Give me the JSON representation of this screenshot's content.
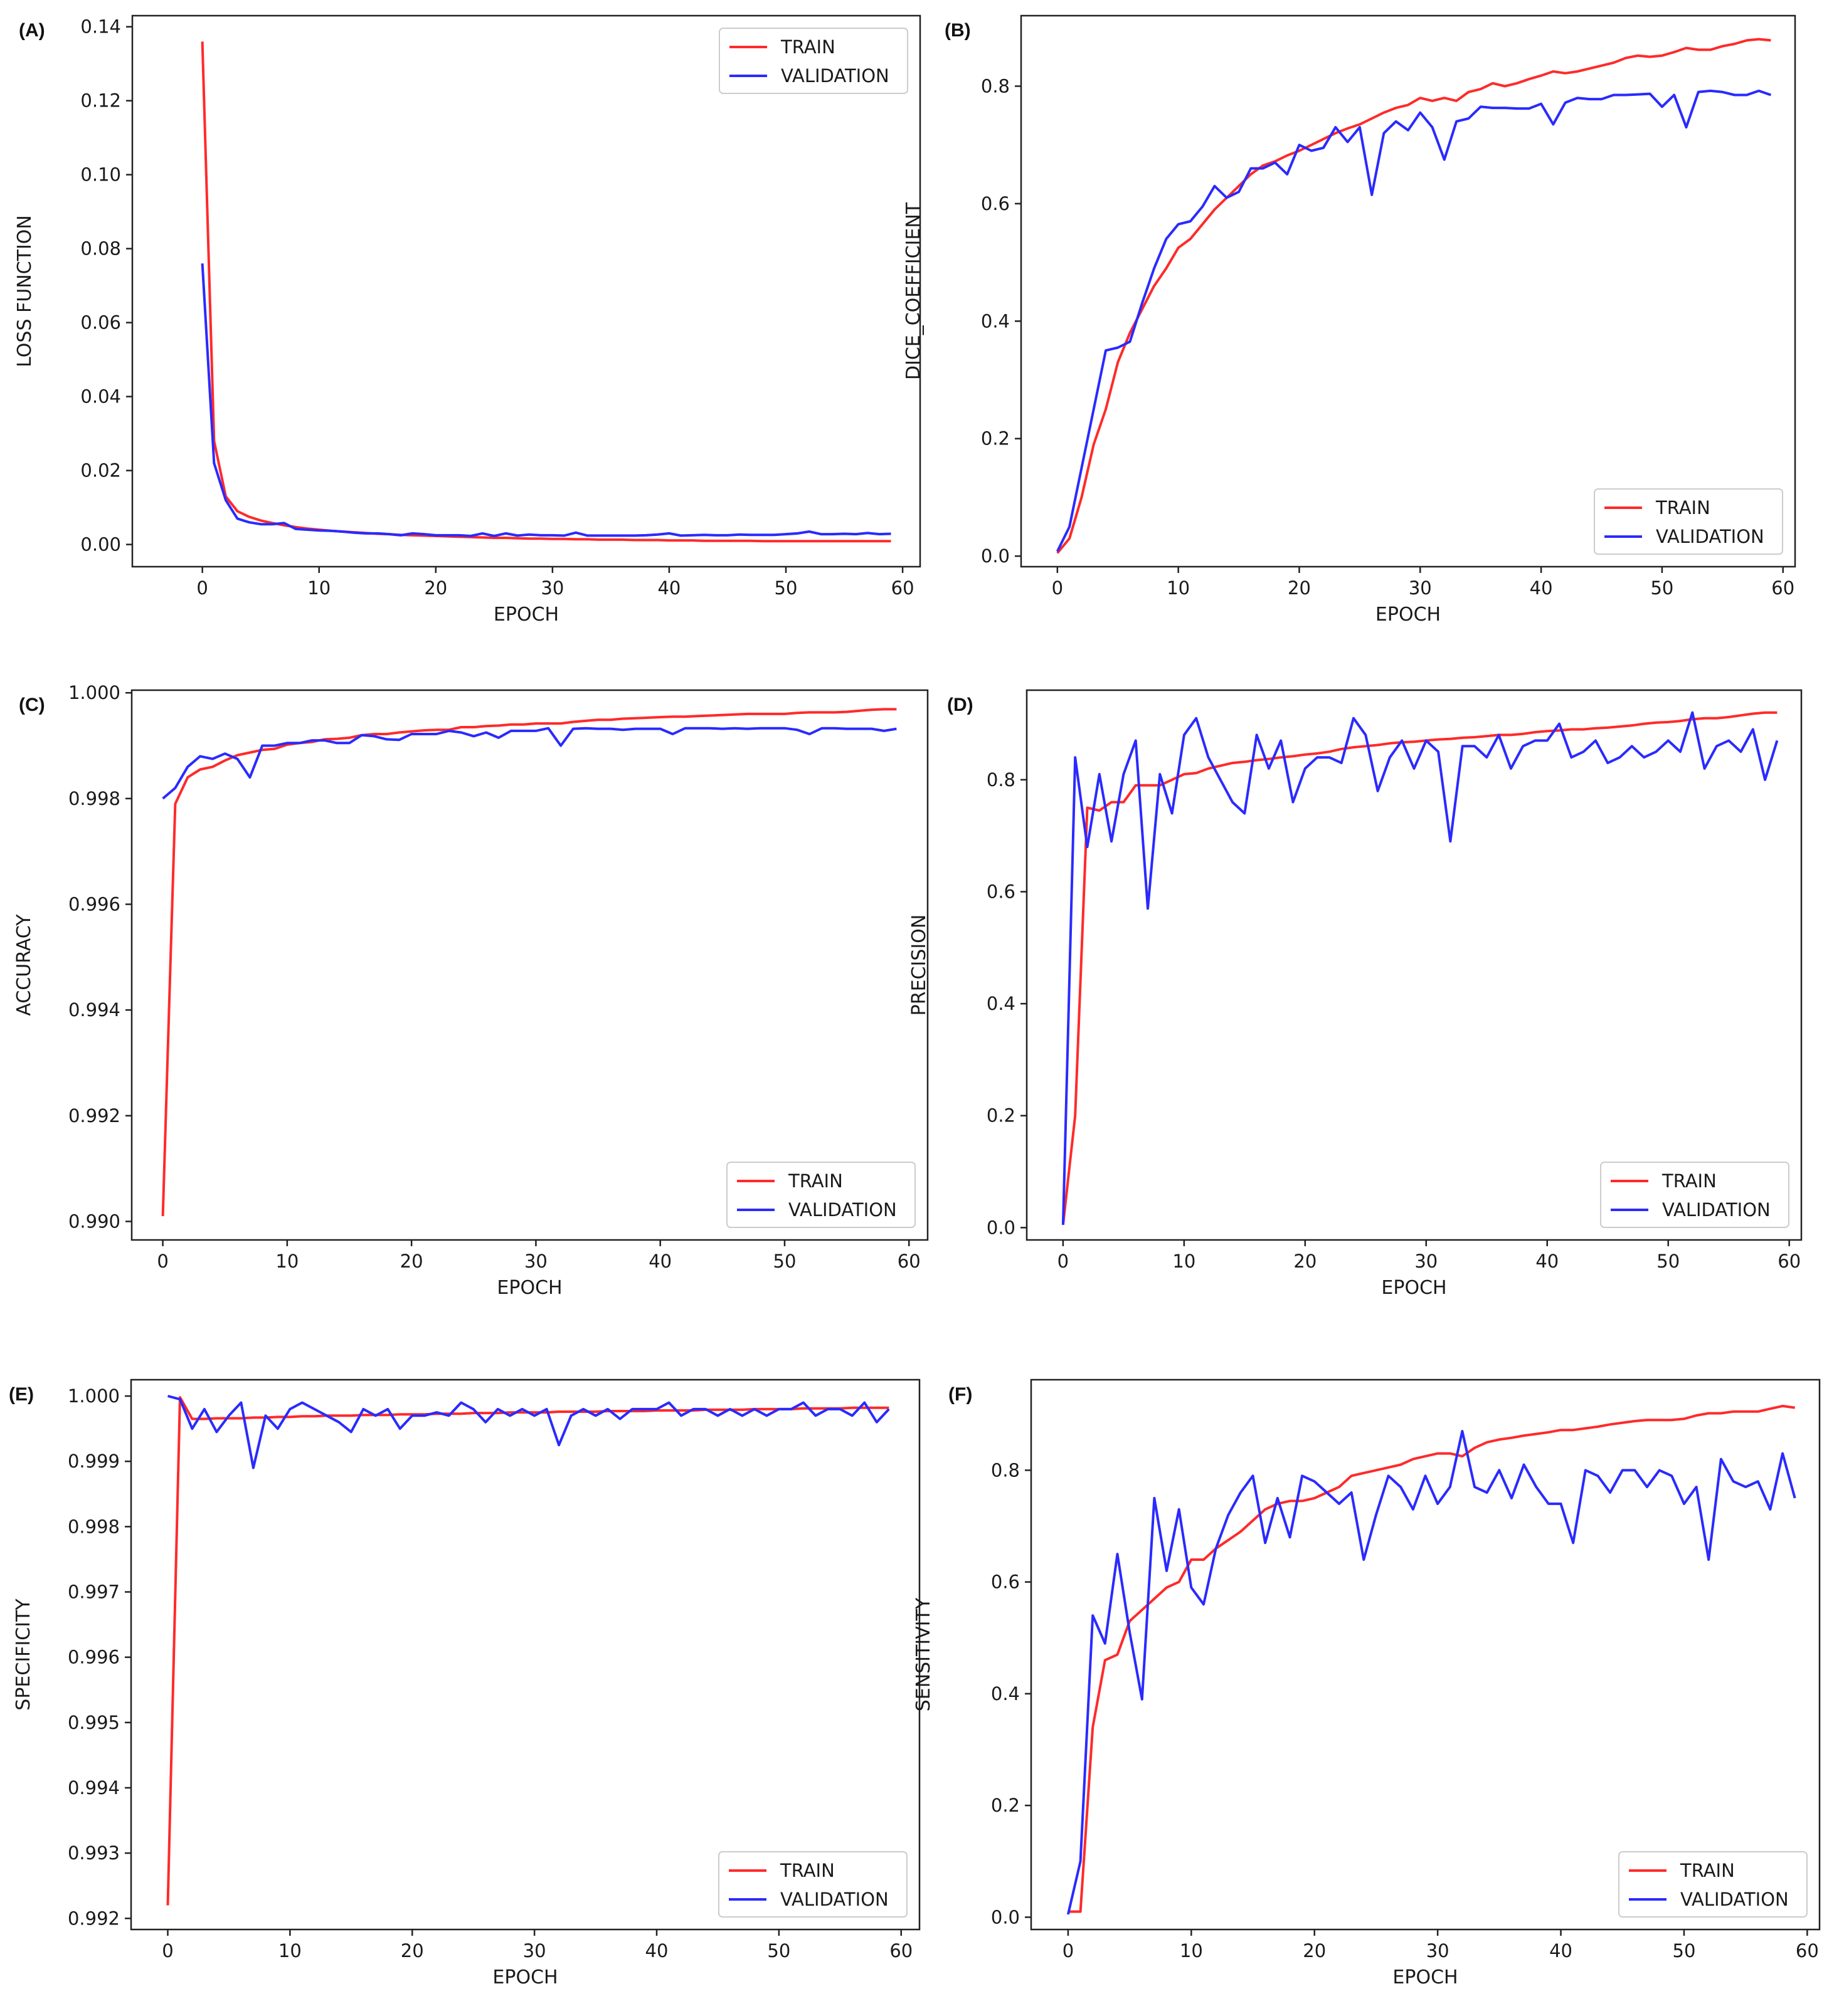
{
  "chart_data": [
    {
      "id": "A",
      "panel_label": "(A)",
      "type": "line",
      "xlabel": "EPOCH",
      "ylabel": "LOSS FUNCTION",
      "xlim": [
        -6,
        61.5
      ],
      "ylim": [
        -0.006,
        0.143
      ],
      "xticks": [
        0,
        10,
        20,
        30,
        40,
        50,
        60
      ],
      "yticks": [
        0.0,
        0.02,
        0.04,
        0.06,
        0.08,
        0.1,
        0.12,
        0.14
      ],
      "ytick_labels": [
        "0.00",
        "0.02",
        "0.04",
        "0.06",
        "0.08",
        "0.10",
        "0.12",
        "0.14"
      ],
      "legend_position": "top-right",
      "series": [
        {
          "name": "TRAIN",
          "color": "#ff2a2a",
          "values": [
            0.136,
            0.028,
            0.013,
            0.009,
            0.0075,
            0.0065,
            0.0058,
            0.0052,
            0.0047,
            0.0043,
            0.004,
            0.0037,
            0.0035,
            0.0033,
            0.0031,
            0.0029,
            0.0028,
            0.0026,
            0.0025,
            0.0024,
            0.0023,
            0.0022,
            0.0021,
            0.002,
            0.0019,
            0.0018,
            0.0018,
            0.0017,
            0.0016,
            0.0016,
            0.0015,
            0.0015,
            0.0014,
            0.0014,
            0.0013,
            0.0013,
            0.0013,
            0.0012,
            0.0012,
            0.0012,
            0.0011,
            0.0011,
            0.0011,
            0.001,
            0.001,
            0.001,
            0.001,
            0.001,
            0.0009,
            0.0009,
            0.0009,
            0.0009,
            0.0009,
            0.0009,
            0.0009,
            0.0009,
            0.0009,
            0.0009,
            0.0009,
            0.0009
          ]
        },
        {
          "name": "VALIDATION",
          "color": "#2a2aff",
          "values": [
            0.076,
            0.022,
            0.012,
            0.007,
            0.006,
            0.0055,
            0.0055,
            0.0058,
            0.0042,
            0.004,
            0.0038,
            0.0037,
            0.0035,
            0.0032,
            0.003,
            0.003,
            0.0028,
            0.0025,
            0.003,
            0.0028,
            0.0025,
            0.0025,
            0.0025,
            0.0023,
            0.003,
            0.0023,
            0.003,
            0.0024,
            0.0027,
            0.0025,
            0.0025,
            0.0024,
            0.0032,
            0.0024,
            0.0024,
            0.0024,
            0.0024,
            0.0024,
            0.0025,
            0.0027,
            0.003,
            0.0024,
            0.0025,
            0.0026,
            0.0025,
            0.0025,
            0.0027,
            0.0026,
            0.0026,
            0.0026,
            0.0028,
            0.003,
            0.0035,
            0.0028,
            0.0028,
            0.0029,
            0.0028,
            0.0031,
            0.0028,
            0.0029
          ]
        }
      ]
    },
    {
      "id": "B",
      "panel_label": "(B)",
      "type": "line",
      "xlabel": "EPOCH",
      "ylabel": "DICE_COEFFICIENT",
      "xlim": [
        -3,
        61
      ],
      "ylim": [
        -0.018,
        0.92
      ],
      "xticks": [
        0,
        10,
        20,
        30,
        40,
        50,
        60
      ],
      "yticks": [
        0.0,
        0.2,
        0.4,
        0.6,
        0.8
      ],
      "ytick_labels": [
        "0.0",
        "0.2",
        "0.4",
        "0.6",
        "0.8"
      ],
      "legend_position": "bottom-right",
      "series": [
        {
          "name": "TRAIN",
          "color": "#ff2a2a",
          "values": [
            0.005,
            0.03,
            0.1,
            0.19,
            0.25,
            0.33,
            0.38,
            0.42,
            0.46,
            0.49,
            0.525,
            0.54,
            0.565,
            0.59,
            0.61,
            0.63,
            0.65,
            0.665,
            0.672,
            0.682,
            0.69,
            0.7,
            0.71,
            0.72,
            0.728,
            0.735,
            0.745,
            0.755,
            0.763,
            0.768,
            0.78,
            0.775,
            0.78,
            0.775,
            0.79,
            0.795,
            0.805,
            0.8,
            0.805,
            0.812,
            0.818,
            0.825,
            0.822,
            0.825,
            0.83,
            0.835,
            0.84,
            0.848,
            0.852,
            0.85,
            0.852,
            0.858,
            0.865,
            0.862,
            0.862,
            0.868,
            0.872,
            0.878,
            0.88,
            0.878
          ]
        },
        {
          "name": "VALIDATION",
          "color": "#2a2aff",
          "values": [
            0.008,
            0.05,
            0.15,
            0.25,
            0.35,
            0.355,
            0.365,
            0.43,
            0.49,
            0.54,
            0.565,
            0.57,
            0.595,
            0.63,
            0.61,
            0.62,
            0.66,
            0.66,
            0.67,
            0.65,
            0.7,
            0.69,
            0.695,
            0.73,
            0.705,
            0.73,
            0.615,
            0.72,
            0.74,
            0.725,
            0.755,
            0.73,
            0.675,
            0.74,
            0.745,
            0.765,
            0.763,
            0.763,
            0.762,
            0.762,
            0.77,
            0.735,
            0.772,
            0.78,
            0.778,
            0.778,
            0.785,
            0.785,
            0.786,
            0.787,
            0.765,
            0.785,
            0.73,
            0.79,
            0.792,
            0.79,
            0.785,
            0.785,
            0.792,
            0.785
          ]
        }
      ]
    },
    {
      "id": "C",
      "panel_label": "(C)",
      "type": "line",
      "xlabel": "EPOCH",
      "ylabel": "ACCURACY",
      "xlim": [
        -2.5,
        61.5
      ],
      "ylim": [
        0.98965,
        1.00005
      ],
      "xticks": [
        0,
        10,
        20,
        30,
        40,
        50,
        60
      ],
      "yticks": [
        0.99,
        0.992,
        0.994,
        0.996,
        0.998,
        1.0
      ],
      "ytick_labels": [
        "0.990",
        "0.992",
        "0.994",
        "0.996",
        "0.998",
        "1.000"
      ],
      "legend_position": "bottom-right",
      "series": [
        {
          "name": "TRAIN",
          "color": "#ff2a2a",
          "values": [
            0.9901,
            0.9979,
            0.9984,
            0.99855,
            0.9986,
            0.99872,
            0.99882,
            0.99887,
            0.99892,
            0.99894,
            0.99902,
            0.99905,
            0.99907,
            0.99912,
            0.99913,
            0.99915,
            0.9992,
            0.99922,
            0.99922,
            0.99925,
            0.99927,
            0.99929,
            0.9993,
            0.9993,
            0.99935,
            0.99935,
            0.99937,
            0.99938,
            0.9994,
            0.9994,
            0.99942,
            0.99942,
            0.99942,
            0.99945,
            0.99947,
            0.99949,
            0.99949,
            0.99951,
            0.99952,
            0.99953,
            0.99954,
            0.99955,
            0.99955,
            0.99956,
            0.99957,
            0.99958,
            0.99959,
            0.9996,
            0.9996,
            0.9996,
            0.9996,
            0.99962,
            0.99963,
            0.99963,
            0.99963,
            0.99964,
            0.99966,
            0.99968,
            0.99969,
            0.99969
          ]
        },
        {
          "name": "VALIDATION",
          "color": "#2a2aff",
          "values": [
            0.998,
            0.9982,
            0.9986,
            0.9988,
            0.99875,
            0.99885,
            0.99875,
            0.9984,
            0.999,
            0.999,
            0.99905,
            0.99905,
            0.9991,
            0.9991,
            0.99905,
            0.99905,
            0.9992,
            0.99918,
            0.99912,
            0.99911,
            0.99922,
            0.99922,
            0.99922,
            0.99928,
            0.99925,
            0.99918,
            0.99925,
            0.99915,
            0.99928,
            0.99928,
            0.99928,
            0.99933,
            0.999,
            0.99932,
            0.99933,
            0.99932,
            0.99932,
            0.9993,
            0.99932,
            0.99932,
            0.99932,
            0.99922,
            0.99933,
            0.99933,
            0.99933,
            0.99932,
            0.99933,
            0.99932,
            0.99933,
            0.99933,
            0.99933,
            0.9993,
            0.99922,
            0.99933,
            0.99933,
            0.99932,
            0.99932,
            0.99932,
            0.99928,
            0.99932
          ]
        }
      ]
    },
    {
      "id": "D",
      "panel_label": "(D)",
      "type": "line",
      "xlabel": "EPOCH",
      "ylabel": "PRECISION",
      "xlim": [
        -3,
        61
      ],
      "ylim": [
        -0.022,
        0.96
      ],
      "xticks": [
        0,
        10,
        20,
        30,
        40,
        50,
        60
      ],
      "yticks": [
        0.0,
        0.2,
        0.4,
        0.6,
        0.8
      ],
      "ytick_labels": [
        "0.0",
        "0.2",
        "0.4",
        "0.6",
        "0.8"
      ],
      "legend_position": "bottom-right",
      "series": [
        {
          "name": "TRAIN",
          "color": "#ff2a2a",
          "values": [
            0.005,
            0.2,
            0.75,
            0.745,
            0.76,
            0.76,
            0.79,
            0.79,
            0.79,
            0.8,
            0.81,
            0.812,
            0.82,
            0.825,
            0.83,
            0.832,
            0.835,
            0.837,
            0.84,
            0.842,
            0.845,
            0.847,
            0.85,
            0.855,
            0.858,
            0.86,
            0.862,
            0.865,
            0.867,
            0.868,
            0.87,
            0.872,
            0.873,
            0.875,
            0.876,
            0.878,
            0.88,
            0.88,
            0.882,
            0.885,
            0.887,
            0.888,
            0.89,
            0.89,
            0.892,
            0.893,
            0.895,
            0.897,
            0.9,
            0.902,
            0.903,
            0.905,
            0.908,
            0.91,
            0.91,
            0.912,
            0.915,
            0.918,
            0.92,
            0.92
          ]
        },
        {
          "name": "VALIDATION",
          "color": "#2a2aff",
          "values": [
            0.005,
            0.84,
            0.68,
            0.81,
            0.69,
            0.81,
            0.87,
            0.57,
            0.81,
            0.74,
            0.88,
            0.91,
            0.84,
            0.8,
            0.76,
            0.74,
            0.88,
            0.82,
            0.87,
            0.76,
            0.82,
            0.84,
            0.84,
            0.83,
            0.91,
            0.88,
            0.78,
            0.84,
            0.87,
            0.82,
            0.87,
            0.85,
            0.69,
            0.86,
            0.86,
            0.84,
            0.88,
            0.82,
            0.86,
            0.87,
            0.87,
            0.9,
            0.84,
            0.85,
            0.87,
            0.83,
            0.84,
            0.86,
            0.84,
            0.85,
            0.87,
            0.85,
            0.92,
            0.82,
            0.86,
            0.87,
            0.85,
            0.89,
            0.8,
            0.87
          ]
        }
      ]
    },
    {
      "id": "E",
      "panel_label": "(E)",
      "type": "line",
      "xlabel": "EPOCH",
      "ylabel": "SPECIFICITY",
      "xlim": [
        -3,
        61.5
      ],
      "ylim": [
        0.99183,
        1.00025
      ],
      "xticks": [
        0,
        10,
        20,
        30,
        40,
        50,
        60
      ],
      "yticks": [
        0.992,
        0.993,
        0.994,
        0.995,
        0.996,
        0.997,
        0.998,
        0.999,
        1.0
      ],
      "ytick_labels": [
        "0.992",
        "0.993",
        "0.994",
        "0.995",
        "0.996",
        "0.997",
        "0.998",
        "0.999",
        "1.000"
      ],
      "legend_position": "bottom-right",
      "series": [
        {
          "name": "TRAIN",
          "color": "#ff2a2a",
          "values": [
            0.9922,
            0.99998,
            0.99965,
            0.99965,
            0.99966,
            0.99966,
            0.99966,
            0.99967,
            0.99967,
            0.99968,
            0.99968,
            0.99969,
            0.99969,
            0.9997,
            0.9997,
            0.9997,
            0.99971,
            0.99971,
            0.99971,
            0.99972,
            0.99972,
            0.99972,
            0.99973,
            0.99973,
            0.99973,
            0.99974,
            0.99974,
            0.99974,
            0.99975,
            0.99975,
            0.99975,
            0.99975,
            0.99976,
            0.99976,
            0.99976,
            0.99976,
            0.99977,
            0.99977,
            0.99977,
            0.99977,
            0.99978,
            0.99978,
            0.99978,
            0.99978,
            0.99979,
            0.99979,
            0.99979,
            0.99979,
            0.9998,
            0.9998,
            0.9998,
            0.9998,
            0.99981,
            0.99981,
            0.99981,
            0.99981,
            0.99982,
            0.99982,
            0.99982,
            0.99982
          ]
        },
        {
          "name": "VALIDATION",
          "color": "#2a2aff",
          "values": [
            1.0,
            0.99995,
            0.9995,
            0.9998,
            0.99945,
            0.9997,
            0.9999,
            0.9989,
            0.9997,
            0.9995,
            0.9998,
            0.9999,
            0.9998,
            0.9997,
            0.9996,
            0.99945,
            0.9998,
            0.9997,
            0.9998,
            0.9995,
            0.9997,
            0.9997,
            0.99975,
            0.9997,
            0.9999,
            0.9998,
            0.9996,
            0.9998,
            0.9997,
            0.9998,
            0.9997,
            0.9998,
            0.99925,
            0.9997,
            0.9998,
            0.9997,
            0.9998,
            0.99965,
            0.9998,
            0.9998,
            0.9998,
            0.9999,
            0.9997,
            0.9998,
            0.9998,
            0.9997,
            0.9998,
            0.9997,
            0.9998,
            0.9997,
            0.9998,
            0.9998,
            0.9999,
            0.9997,
            0.9998,
            0.9998,
            0.9997,
            0.9999,
            0.9996,
            0.9998
          ]
        }
      ]
    },
    {
      "id": "F",
      "panel_label": "(F)",
      "type": "line",
      "xlabel": "EPOCH",
      "ylabel": "SENSITIVITY",
      "xlim": [
        -3,
        61
      ],
      "ylim": [
        -0.022,
        0.962
      ],
      "xticks": [
        0,
        10,
        20,
        30,
        40,
        50,
        60
      ],
      "yticks": [
        0.0,
        0.2,
        0.4,
        0.6,
        0.8
      ],
      "ytick_labels": [
        "0.0",
        "0.2",
        "0.4",
        "0.6",
        "0.8"
      ],
      "legend_position": "bottom-right",
      "series": [
        {
          "name": "TRAIN",
          "color": "#ff2a2a",
          "values": [
            0.01,
            0.01,
            0.34,
            0.46,
            0.47,
            0.53,
            0.55,
            0.57,
            0.59,
            0.6,
            0.64,
            0.64,
            0.66,
            0.675,
            0.69,
            0.71,
            0.73,
            0.74,
            0.745,
            0.745,
            0.75,
            0.76,
            0.77,
            0.79,
            0.795,
            0.8,
            0.805,
            0.81,
            0.82,
            0.825,
            0.83,
            0.83,
            0.825,
            0.84,
            0.85,
            0.855,
            0.858,
            0.862,
            0.865,
            0.868,
            0.872,
            0.872,
            0.875,
            0.878,
            0.882,
            0.885,
            0.888,
            0.89,
            0.89,
            0.89,
            0.892,
            0.898,
            0.902,
            0.902,
            0.905,
            0.905,
            0.905,
            0.91,
            0.915,
            0.912
          ]
        },
        {
          "name": "VALIDATION",
          "color": "#2a2aff",
          "values": [
            0.005,
            0.1,
            0.54,
            0.49,
            0.65,
            0.51,
            0.39,
            0.75,
            0.62,
            0.73,
            0.59,
            0.56,
            0.66,
            0.72,
            0.76,
            0.79,
            0.67,
            0.75,
            0.68,
            0.79,
            0.78,
            0.76,
            0.74,
            0.76,
            0.64,
            0.72,
            0.79,
            0.77,
            0.73,
            0.79,
            0.74,
            0.77,
            0.87,
            0.77,
            0.76,
            0.8,
            0.75,
            0.81,
            0.77,
            0.74,
            0.74,
            0.67,
            0.8,
            0.79,
            0.76,
            0.8,
            0.8,
            0.77,
            0.8,
            0.79,
            0.74,
            0.77,
            0.64,
            0.82,
            0.78,
            0.77,
            0.78,
            0.73,
            0.83,
            0.75
          ]
        }
      ]
    }
  ]
}
